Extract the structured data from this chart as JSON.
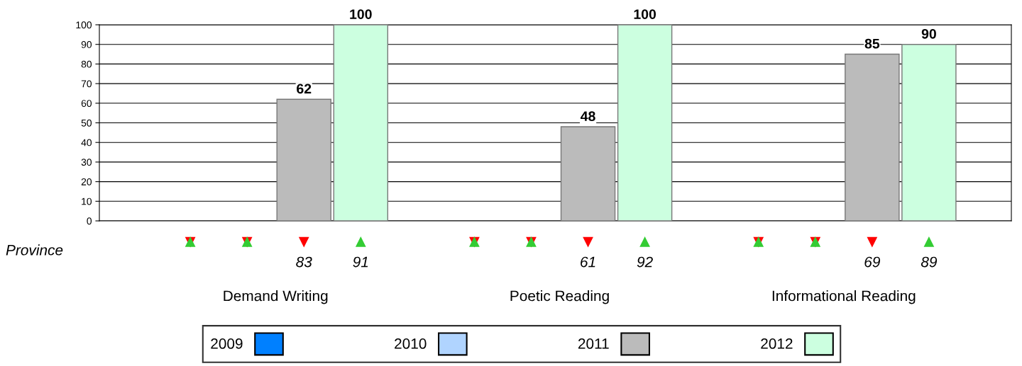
{
  "chart_data": {
    "type": "bar",
    "categories": [
      "Demand Writing",
      "Poetic Reading",
      "Informational Reading"
    ],
    "series": [
      {
        "name": "2009",
        "color": "#0080ff",
        "values": [
          null,
          null,
          null
        ]
      },
      {
        "name": "2010",
        "color": "#b0d4ff",
        "values": [
          null,
          null,
          null
        ]
      },
      {
        "name": "2011",
        "color": "#bbbbbb",
        "values": [
          62,
          48,
          85
        ]
      },
      {
        "name": "2012",
        "color": "#ccffe0",
        "values": [
          100,
          100,
          90
        ]
      }
    ],
    "ylim": [
      0,
      100
    ],
    "yticks": [
      0,
      10,
      20,
      30,
      40,
      50,
      60,
      70,
      80,
      90,
      100
    ],
    "grid": "y",
    "legend": "bottom",
    "data_labels": true,
    "annotations": [
      "Province",
      "83",
      "91",
      "61",
      "92",
      "69",
      "89"
    ]
  }
}
